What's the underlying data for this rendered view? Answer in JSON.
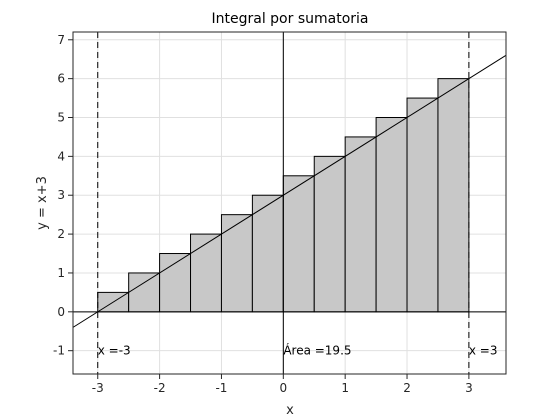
{
  "chart_data": {
    "type": "bar",
    "title": "Integral por sumatoria",
    "xlabel": "x",
    "ylabel": "y = x+3",
    "xlim": [
      -3.4,
      3.6
    ],
    "ylim": [
      -1.6,
      7.2
    ],
    "grid": true,
    "x_ticks": [
      -3,
      -2,
      -1,
      0,
      1,
      2,
      3
    ],
    "y_ticks": [
      -1,
      0,
      1,
      2,
      3,
      4,
      5,
      6,
      7
    ],
    "bar_width": 0.5,
    "bars": {
      "x": [
        -3,
        -2.5,
        -2,
        -1.5,
        -1,
        -0.5,
        0,
        0.5,
        1,
        1.5,
        2,
        2.5
      ],
      "values": [
        0.5,
        1,
        1.5,
        2,
        2.5,
        3,
        3.5,
        4,
        4.5,
        5,
        5.5,
        6
      ],
      "fill": "#c8c8c8"
    },
    "function_line": {
      "x": [
        -3.4,
        3.6
      ],
      "y": [
        -0.4,
        6.6
      ],
      "color": "#000000"
    },
    "vertical_lines": [
      {
        "x": -3,
        "style": "dashed"
      },
      {
        "x": 3,
        "style": "dashed"
      },
      {
        "x": 0,
        "style": "solid"
      }
    ],
    "horizontal_lines": [
      {
        "y": 0,
        "style": "solid"
      }
    ],
    "annotations": [
      {
        "x": -3,
        "y": -1,
        "text": "x =-3"
      },
      {
        "x": 0,
        "y": -1,
        "text": "Área =19.5"
      },
      {
        "x": 3,
        "y": -1,
        "text": "x =3"
      }
    ]
  }
}
